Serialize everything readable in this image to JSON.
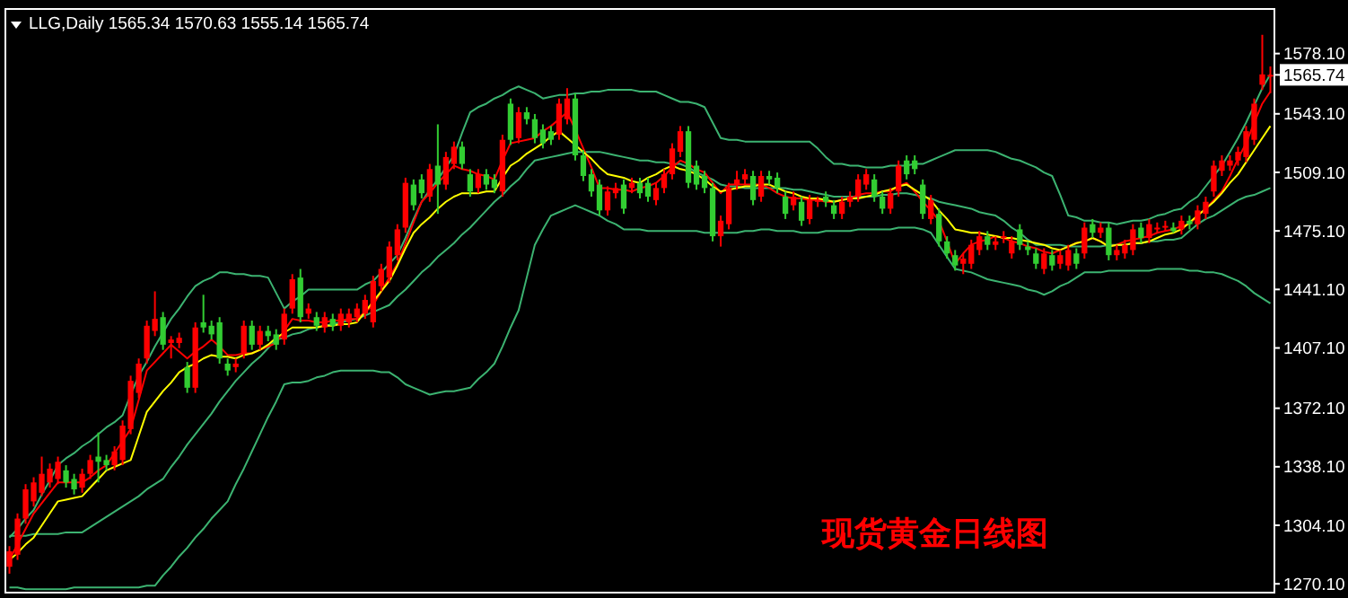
{
  "chart_data": {
    "type": "candlestick",
    "title": "LLG,Daily  1565.34 1570.63 1555.14 1565.74",
    "categories": [
      null,
      null,
      null,
      null,
      null,
      null,
      null,
      null,
      null,
      null,
      null,
      null,
      null,
      null,
      null,
      null,
      null,
      null,
      null,
      null,
      null,
      null,
      null,
      null,
      null,
      null,
      null,
      null,
      null,
      null,
      null,
      null,
      null,
      null,
      null,
      null,
      null,
      null,
      null,
      null,
      null,
      null,
      null,
      null,
      null,
      null,
      null,
      null,
      null,
      null,
      null,
      null,
      null,
      null,
      null,
      null,
      null,
      null,
      null,
      null,
      null,
      null,
      null,
      null,
      null,
      null,
      null,
      null,
      null,
      null,
      null,
      null,
      null,
      null,
      null,
      null,
      null,
      null,
      null,
      null,
      null,
      null,
      null,
      null,
      null,
      null,
      null,
      null,
      null,
      null,
      null,
      null,
      null,
      null,
      null,
      null,
      null,
      null,
      null,
      null,
      null,
      null,
      null,
      null,
      null,
      null,
      null,
      null,
      null,
      null,
      null,
      null,
      null,
      null,
      null,
      null,
      null,
      null,
      null,
      null,
      null,
      null,
      null,
      null,
      null,
      null,
      null,
      null,
      null,
      null,
      null,
      null,
      null,
      null,
      null,
      null,
      null,
      null,
      null,
      null,
      null,
      null,
      null,
      null,
      null,
      null,
      null,
      null,
      null,
      null,
      null,
      null,
      null,
      null,
      null,
      null,
      null
    ],
    "ohlc": [
      [
        1280,
        1292,
        1276,
        1289
      ],
      [
        1287,
        1311,
        1284,
        1308
      ],
      [
        1308,
        1328,
        1305,
        1325
      ],
      [
        1318,
        1332,
        1315,
        1329
      ],
      [
        1323,
        1344,
        1321,
        1334
      ],
      [
        1329,
        1340,
        1326,
        1337
      ],
      [
        1331,
        1344,
        1328,
        1341
      ],
      [
        1336,
        1339,
        1326,
        1329
      ],
      [
        1331,
        1334,
        1322,
        1325
      ],
      [
        1326,
        1337,
        1323,
        1334
      ],
      [
        1334,
        1345,
        1331,
        1342
      ],
      [
        1344,
        1358,
        1329,
        1341
      ],
      [
        1342,
        1345,
        1336,
        1339
      ],
      [
        1339,
        1350,
        1336,
        1347
      ],
      [
        1342,
        1365,
        1339,
        1362
      ],
      [
        1360,
        1391,
        1357,
        1388
      ],
      [
        1381,
        1401,
        1378,
        1398
      ],
      [
        1401,
        1423,
        1398,
        1420
      ],
      [
        1417,
        1440,
        1414,
        1424
      ],
      [
        1425,
        1428,
        1406,
        1409
      ],
      [
        1410,
        1414,
        1401,
        1412
      ],
      [
        1410,
        1416,
        1407,
        1413
      ],
      [
        1396,
        1399,
        1381,
        1384
      ],
      [
        1384,
        1422,
        1381,
        1419
      ],
      [
        1422,
        1438,
        1416,
        1419
      ],
      [
        1420,
        1423,
        1412,
        1415
      ],
      [
        1422,
        1425,
        1398,
        1401
      ],
      [
        1398,
        1401,
        1391,
        1394
      ],
      [
        1396,
        1401,
        1393,
        1398
      ],
      [
        1404,
        1423,
        1401,
        1420
      ],
      [
        1420,
        1423,
        1406,
        1409
      ],
      [
        1409,
        1420,
        1406,
        1417
      ],
      [
        1417,
        1420,
        1411,
        1414
      ],
      [
        1415,
        1418,
        1406,
        1409
      ],
      [
        1412,
        1430,
        1409,
        1427
      ],
      [
        1430,
        1450,
        1427,
        1447
      ],
      [
        1448,
        1453,
        1422,
        1425
      ],
      [
        1427,
        1433,
        1424,
        1430
      ],
      [
        1425,
        1428,
        1417,
        1420
      ],
      [
        1419,
        1428,
        1416,
        1425
      ],
      [
        1424,
        1427,
        1417,
        1420
      ],
      [
        1420,
        1430,
        1417,
        1427
      ],
      [
        1422,
        1430,
        1419,
        1427
      ],
      [
        1425,
        1433,
        1422,
        1430
      ],
      [
        1427,
        1438,
        1424,
        1435
      ],
      [
        1422,
        1449,
        1419,
        1446
      ],
      [
        1443,
        1456,
        1440,
        1453
      ],
      [
        1448,
        1469,
        1445,
        1466
      ],
      [
        1461,
        1479,
        1458,
        1476
      ],
      [
        1477,
        1506,
        1474,
        1503
      ],
      [
        1502,
        1505,
        1487,
        1490
      ],
      [
        1505,
        1508,
        1494,
        1497
      ],
      [
        1495,
        1514,
        1492,
        1511
      ],
      [
        1513,
        1537,
        1485,
        1502
      ],
      [
        1502,
        1521,
        1499,
        1518
      ],
      [
        1514,
        1527,
        1511,
        1524
      ],
      [
        1524,
        1527,
        1511,
        1514
      ],
      [
        1508,
        1511,
        1495,
        1498
      ],
      [
        1500,
        1511,
        1497,
        1508
      ],
      [
        1508,
        1511,
        1499,
        1502
      ],
      [
        1505,
        1508,
        1497,
        1500
      ],
      [
        1498,
        1531,
        1495,
        1528
      ],
      [
        1549,
        1552,
        1525,
        1528
      ],
      [
        1529,
        1547,
        1526,
        1544
      ],
      [
        1544,
        1547,
        1537,
        1540
      ],
      [
        1540,
        1543,
        1526,
        1529
      ],
      [
        1534,
        1537,
        1523,
        1526
      ],
      [
        1533,
        1536,
        1525,
        1528
      ],
      [
        1531,
        1552,
        1528,
        1549
      ],
      [
        1540,
        1558,
        1537,
        1552
      ],
      [
        1552,
        1555,
        1516,
        1519
      ],
      [
        1519,
        1522,
        1504,
        1507
      ],
      [
        1508,
        1511,
        1495,
        1498
      ],
      [
        1502,
        1505,
        1484,
        1487
      ],
      [
        1487,
        1501,
        1484,
        1498
      ],
      [
        1497,
        1503,
        1494,
        1500
      ],
      [
        1502,
        1505,
        1485,
        1488
      ],
      [
        1500,
        1506,
        1497,
        1503
      ],
      [
        1503,
        1506,
        1494,
        1497
      ],
      [
        1503,
        1506,
        1492,
        1495
      ],
      [
        1493,
        1503,
        1490,
        1500
      ],
      [
        1500,
        1511,
        1497,
        1508
      ],
      [
        1508,
        1526,
        1505,
        1523
      ],
      [
        1521,
        1536,
        1518,
        1533
      ],
      [
        1533,
        1536,
        1500,
        1503
      ],
      [
        1513,
        1516,
        1499,
        1502
      ],
      [
        1507,
        1510,
        1497,
        1500
      ],
      [
        1500,
        1503,
        1469,
        1472
      ],
      [
        1472,
        1484,
        1466,
        1481
      ],
      [
        1479,
        1503,
        1476,
        1500
      ],
      [
        1502,
        1510,
        1499,
        1505
      ],
      [
        1505,
        1511,
        1502,
        1508
      ],
      [
        1507,
        1510,
        1490,
        1493
      ],
      [
        1495,
        1510,
        1492,
        1507
      ],
      [
        1507,
        1510,
        1502,
        1505
      ],
      [
        1506,
        1509,
        1497,
        1500
      ],
      [
        1495,
        1498,
        1482,
        1485
      ],
      [
        1490,
        1498,
        1487,
        1495
      ],
      [
        1492,
        1495,
        1478,
        1481
      ],
      [
        1482,
        1496,
        1479,
        1493
      ],
      [
        1492,
        1495,
        1489,
        1493
      ],
      [
        1495,
        1498,
        1489,
        1492
      ],
      [
        1490,
        1493,
        1482,
        1485
      ],
      [
        1485,
        1495,
        1482,
        1492
      ],
      [
        1492,
        1498,
        1489,
        1495
      ],
      [
        1495,
        1508,
        1492,
        1505
      ],
      [
        1502,
        1511,
        1499,
        1508
      ],
      [
        1505,
        1508,
        1492,
        1495
      ],
      [
        1495,
        1498,
        1485,
        1488
      ],
      [
        1488,
        1500,
        1485,
        1497
      ],
      [
        1498,
        1516,
        1495,
        1513
      ],
      [
        1516,
        1519,
        1505,
        1508
      ],
      [
        1516,
        1519,
        1508,
        1511
      ],
      [
        1502,
        1505,
        1482,
        1485
      ],
      [
        1482,
        1496,
        1479,
        1493
      ],
      [
        1485,
        1488,
        1466,
        1469
      ],
      [
        1469,
        1472,
        1459,
        1462
      ],
      [
        1461,
        1464,
        1452,
        1455
      ],
      [
        1456,
        1462,
        1450,
        1459
      ],
      [
        1456,
        1470,
        1453,
        1467
      ],
      [
        1464,
        1475,
        1461,
        1472
      ],
      [
        1472,
        1475,
        1464,
        1467
      ],
      [
        1467,
        1472,
        1464,
        1469
      ],
      [
        1471,
        1475,
        1468,
        1472
      ],
      [
        1462,
        1472,
        1459,
        1469
      ],
      [
        1476,
        1479,
        1464,
        1467
      ],
      [
        1466,
        1469,
        1461,
        1464
      ],
      [
        1462,
        1465,
        1453,
        1456
      ],
      [
        1453,
        1465,
        1450,
        1462
      ],
      [
        1461,
        1464,
        1452,
        1455
      ],
      [
        1456,
        1464,
        1453,
        1461
      ],
      [
        1455,
        1467,
        1452,
        1464
      ],
      [
        1462,
        1465,
        1453,
        1456
      ],
      [
        1462,
        1480,
        1459,
        1477
      ],
      [
        1479,
        1482,
        1471,
        1474
      ],
      [
        1474,
        1480,
        1471,
        1477
      ],
      [
        1477,
        1480,
        1458,
        1461
      ],
      [
        1461,
        1467,
        1458,
        1464
      ],
      [
        1462,
        1470,
        1459,
        1467
      ],
      [
        1464,
        1479,
        1461,
        1476
      ],
      [
        1477,
        1480,
        1468,
        1471
      ],
      [
        1471,
        1482,
        1468,
        1479
      ],
      [
        1476,
        1480,
        1474,
        1477
      ],
      [
        1477,
        1481,
        1475,
        1478
      ],
      [
        1477,
        1480,
        1474,
        1475
      ],
      [
        1476,
        1484,
        1473,
        1481
      ],
      [
        1481,
        1484,
        1476,
        1479
      ],
      [
        1479,
        1490,
        1476,
        1487
      ],
      [
        1485,
        1495,
        1482,
        1492
      ],
      [
        1498,
        1516,
        1495,
        1513
      ],
      [
        1510,
        1519,
        1507,
        1516
      ],
      [
        1513,
        1519,
        1510,
        1516
      ],
      [
        1516,
        1524,
        1513,
        1521
      ],
      [
        1518,
        1536,
        1515,
        1533
      ],
      [
        1528,
        1552,
        1525,
        1549
      ],
      [
        1560,
        1589,
        1557,
        1566
      ],
      [
        1565.34,
        1570.63,
        1555.14,
        1565.74
      ]
    ],
    "colors": [
      "#ff0000",
      "#ff0000",
      "#ff0000",
      "#ff0000",
      "#ff0000",
      "#ff0000",
      "#ff0000",
      "#32cd32",
      "#32cd32",
      "#ff0000",
      "#ff0000",
      "#32cd32",
      "#32cd32",
      "#ff0000",
      "#ff0000",
      "#ff0000",
      "#ff0000",
      "#ff0000",
      "#ff0000",
      "#32cd32",
      "#ff0000",
      "#ff0000",
      "#32cd32",
      "#ff0000",
      "#32cd32",
      "#32cd32",
      "#32cd32",
      "#32cd32",
      "#ff0000",
      "#ff0000",
      "#32cd32",
      "#ff0000",
      "#32cd32",
      "#32cd32",
      "#ff0000",
      "#ff0000",
      "#32cd32",
      "#ff0000",
      "#32cd32",
      "#ff0000",
      "#32cd32",
      "#ff0000",
      "#ff0000",
      "#ff0000",
      "#ff0000",
      "#ff0000",
      "#ff0000",
      "#ff0000",
      "#ff0000",
      "#ff0000",
      "#32cd32",
      "#32cd32",
      "#ff0000",
      "#32cd32",
      "#ff0000",
      "#ff0000",
      "#32cd32",
      "#32cd32",
      "#ff0000",
      "#32cd32",
      "#32cd32",
      "#ff0000",
      "#32cd32",
      "#ff0000",
      "#32cd32",
      "#32cd32",
      "#32cd32",
      "#32cd32",
      "#ff0000",
      "#ff0000",
      "#32cd32",
      "#32cd32",
      "#32cd32",
      "#32cd32",
      "#ff0000",
      "#ff0000",
      "#32cd32",
      "#ff0000",
      "#32cd32",
      "#32cd32",
      "#ff0000",
      "#ff0000",
      "#ff0000",
      "#ff0000",
      "#32cd32",
      "#32cd32",
      "#32cd32",
      "#32cd32",
      "#ff0000",
      "#ff0000",
      "#ff0000",
      "#ff0000",
      "#32cd32",
      "#ff0000",
      "#32cd32",
      "#32cd32",
      "#32cd32",
      "#ff0000",
      "#32cd32",
      "#ff0000",
      "#ff0000",
      "#32cd32",
      "#32cd32",
      "#ff0000",
      "#ff0000",
      "#ff0000",
      "#ff0000",
      "#32cd32",
      "#32cd32",
      "#ff0000",
      "#ff0000",
      "#32cd32",
      "#32cd32",
      "#32cd32",
      "#ff0000",
      "#32cd32",
      "#32cd32",
      "#32cd32",
      "#ff0000",
      "#ff0000",
      "#ff0000",
      "#32cd32",
      "#ff0000",
      "#ff0000",
      "#ff0000",
      "#32cd32",
      "#32cd32",
      "#32cd32",
      "#ff0000",
      "#32cd32",
      "#ff0000",
      "#ff0000",
      "#32cd32",
      "#ff0000",
      "#32cd32",
      "#ff0000",
      "#32cd32",
      "#ff0000",
      "#ff0000",
      "#ff0000",
      "#32cd32",
      "#ff0000",
      "#ff0000",
      "#ff0000",
      "#32cd32",
      "#ff0000",
      "#32cd32",
      "#ff0000",
      "#ff0000",
      "#ff0000",
      "#ff0000",
      "#ff0000",
      "#ff0000",
      "#ff0000",
      "#ff0000",
      "#ff0000",
      "#ff0000"
    ],
    "series": [
      {
        "type": "line",
        "color": "#3cb371",
        "values": [
          1297,
          1302,
          1308,
          1313,
          1322,
          1330,
          1339,
          1343,
          1346,
          1350,
          1353,
          1357,
          1361,
          1364,
          1368,
          1380,
          1391,
          1399,
          1408,
          1416,
          1424,
          1430,
          1437,
          1443,
          1446,
          1448,
          1451,
          1451,
          1450,
          1450,
          1449,
          1449,
          1448,
          1439,
          1430,
          1434,
          1437,
          1441,
          1441,
          1441,
          1441,
          1441,
          1441,
          1441,
          1444,
          1446,
          1451,
          1456,
          1461,
          1471,
          1482,
          1492,
          1499,
          1505,
          1512,
          1519,
          1532,
          1544,
          1547,
          1549,
          1552,
          1554,
          1557,
          1559,
          1557,
          1555,
          1552,
          1553,
          1554,
          1554,
          1555,
          1555,
          1556,
          1556,
          1557,
          1557,
          1557,
          1557,
          1556,
          1556,
          1556,
          1554,
          1552,
          1550,
          1550,
          1549,
          1547,
          1538,
          1529,
          1528,
          1528,
          1527,
          1527,
          1527,
          1527,
          1527,
          1527,
          1527,
          1527,
          1527,
          1523,
          1518,
          1514,
          1514,
          1513,
          1513,
          1512,
          1512,
          1512,
          1513,
          1513,
          1513,
          1514,
          1514,
          1516,
          1518,
          1520,
          1522,
          1522,
          1522,
          1522,
          1522,
          1521,
          1519,
          1517,
          1516,
          1514,
          1512,
          1509,
          1507,
          1496,
          1484,
          1483,
          1481,
          1481,
          1480,
          1480,
          1479,
          1480,
          1481,
          1481,
          1482,
          1484,
          1485,
          1487,
          1488,
          1492,
          1495,
          1501,
          1507,
          1513,
          1521,
          1529,
          1538,
          1548,
          1558,
          1566
        ]
      },
      {
        "type": "line",
        "color": "#3cb371",
        "values": [
          1298,
          1298,
          1298,
          1299,
          1299,
          1299,
          1299,
          1300,
          1300,
          1300,
          1303,
          1306,
          1309,
          1312,
          1315,
          1318,
          1321,
          1325,
          1328,
          1331,
          1338,
          1344,
          1351,
          1357,
          1363,
          1369,
          1376,
          1382,
          1388,
          1393,
          1398,
          1402,
          1407,
          1412,
          1413,
          1415,
          1416,
          1418,
          1419,
          1420,
          1421,
          1422,
          1423,
          1424,
          1426,
          1428,
          1430,
          1432,
          1437,
          1441,
          1446,
          1451,
          1455,
          1460,
          1464,
          1468,
          1473,
          1477,
          1482,
          1487,
          1492,
          1496,
          1501,
          1505,
          1511,
          1516,
          1517,
          1518,
          1519,
          1520,
          1521,
          1521,
          1521,
          1521,
          1520,
          1519,
          1518,
          1517,
          1516,
          1516,
          1515,
          1515,
          1514,
          1514,
          1512,
          1509,
          1507,
          1505,
          1502,
          1501,
          1501,
          1500,
          1500,
          1500,
          1500,
          1500,
          1500,
          1499,
          1499,
          1498,
          1497,
          1496,
          1495,
          1495,
          1495,
          1495,
          1495,
          1495,
          1496,
          1496,
          1497,
          1497,
          1496,
          1495,
          1494,
          1492,
          1491,
          1490,
          1489,
          1488,
          1486,
          1485,
          1484,
          1481,
          1477,
          1474,
          1470,
          1467,
          1467,
          1467,
          1467,
          1466,
          1466,
          1466,
          1466,
          1466,
          1467,
          1467,
          1467,
          1468,
          1468,
          1469,
          1469,
          1470,
          1470,
          1471,
          1475,
          1479,
          1482,
          1484,
          1487,
          1490,
          1493,
          1495,
          1496,
          1498,
          1500
        ]
      },
      {
        "type": "line",
        "color": "#3cb371",
        "values": [
          1268,
          1268,
          1267,
          1267,
          1267,
          1267,
          1267,
          1267,
          1268,
          1268,
          1268,
          1268,
          1268,
          1268,
          1268,
          1268,
          1268,
          1269,
          1269,
          1275,
          1280,
          1286,
          1291,
          1297,
          1302,
          1308,
          1313,
          1318,
          1328,
          1337,
          1347,
          1357,
          1367,
          1376,
          1386,
          1387,
          1387,
          1388,
          1390,
          1391,
          1393,
          1394,
          1394,
          1394,
          1394,
          1394,
          1393,
          1393,
          1390,
          1386,
          1384,
          1382,
          1380,
          1381,
          1382,
          1382,
          1383,
          1384,
          1389,
          1393,
          1398,
          1408,
          1419,
          1429,
          1448,
          1467,
          1476,
          1484,
          1486,
          1488,
          1490,
          1488,
          1486,
          1484,
          1481,
          1479,
          1476,
          1476,
          1476,
          1475,
          1475,
          1475,
          1475,
          1475,
          1475,
          1475,
          1474,
          1474,
          1474,
          1474,
          1474,
          1475,
          1475,
          1476,
          1476,
          1475,
          1475,
          1475,
          1474,
          1474,
          1474,
          1475,
          1475,
          1475,
          1475,
          1476,
          1476,
          1476,
          1476,
          1476,
          1477,
          1477,
          1477,
          1476,
          1474,
          1467,
          1460,
          1453,
          1452,
          1451,
          1449,
          1447,
          1446,
          1445,
          1444,
          1443,
          1441,
          1440,
          1438,
          1440,
          1443,
          1445,
          1448,
          1451,
          1451,
          1451,
          1452,
          1452,
          1452,
          1452,
          1452,
          1452,
          1453,
          1453,
          1453,
          1453,
          1452,
          1452,
          1451,
          1451,
          1450,
          1448,
          1446,
          1443,
          1439,
          1436,
          1433
        ]
      },
      {
        "type": "line",
        "color": "#ff0000",
        "values": [
          1284,
          1293,
          1302,
          1311,
          1317,
          1323,
          1329,
          1329,
          1329,
          1329,
          1332,
          1336,
          1339,
          1346,
          1353,
          1360,
          1377,
          1394,
          1399,
          1404,
          1409,
          1405,
          1401,
          1405,
          1408,
          1412,
          1408,
          1403,
          1403,
          1404,
          1404,
          1406,
          1408,
          1410,
          1417,
          1424,
          1423,
          1423,
          1422,
          1422,
          1423,
          1423,
          1424,
          1424,
          1428,
          1432,
          1440,
          1448,
          1456,
          1468,
          1480,
          1492,
          1497,
          1503,
          1508,
          1513,
          1511,
          1510,
          1508,
          1507,
          1505,
          1516,
          1526,
          1527,
          1528,
          1529,
          1533,
          1536,
          1540,
          1544,
          1534,
          1523,
          1512,
          1500,
          1500,
          1499,
          1499,
          1498,
          1500,
          1501,
          1503,
          1507,
          1512,
          1516,
          1514,
          1511,
          1509,
          1503,
          1497,
          1502,
          1502,
          1502,
          1502,
          1502,
          1500,
          1497,
          1495,
          1494,
          1494,
          1493,
          1493,
          1492,
          1492,
          1493,
          1494,
          1496,
          1497,
          1497,
          1498,
          1498,
          1501,
          1503,
          1498,
          1492,
          1487,
          1481,
          1469,
          1456,
          1462,
          1467,
          1469,
          1470,
          1472,
          1471,
          1469,
          1468,
          1466,
          1465,
          1463,
          1462,
          1464,
          1466,
          1468,
          1469,
          1471,
          1469,
          1466,
          1467,
          1469,
          1470,
          1471,
          1472,
          1474,
          1475,
          1476,
          1478,
          1479,
          1484,
          1488,
          1493,
          1498,
          1507,
          1517,
          1526,
          1538,
          1549,
          1556
        ]
      },
      {
        "type": "line",
        "color": "#ffff00",
        "values": [
          1284,
          1288,
          1293,
          1297,
          1304,
          1311,
          1318,
          1319,
          1320,
          1321,
          1326,
          1331,
          1336,
          1338,
          1340,
          1342,
          1356,
          1370,
          1376,
          1382,
          1387,
          1393,
          1396,
          1398,
          1401,
          1403,
          1402,
          1402,
          1401,
          1403,
          1404,
          1406,
          1409,
          1413,
          1416,
          1419,
          1419,
          1419,
          1419,
          1420,
          1420,
          1421,
          1421,
          1422,
          1428,
          1434,
          1440,
          1446,
          1455,
          1465,
          1474,
          1479,
          1483,
          1488,
          1492,
          1495,
          1497,
          1497,
          1497,
          1498,
          1498,
          1506,
          1513,
          1516,
          1520,
          1523,
          1526,
          1530,
          1533,
          1529,
          1525,
          1521,
          1517,
          1512,
          1508,
          1507,
          1506,
          1504,
          1503,
          1506,
          1508,
          1511,
          1513,
          1511,
          1510,
          1508,
          1505,
          1501,
          1498,
          1499,
          1500,
          1501,
          1501,
          1502,
          1502,
          1500,
          1498,
          1497,
          1495,
          1494,
          1494,
          1493,
          1492,
          1493,
          1494,
          1494,
          1495,
          1496,
          1498,
          1499,
          1501,
          1502,
          1499,
          1496,
          1493,
          1487,
          1482,
          1476,
          1475,
          1474,
          1474,
          1473,
          1472,
          1471,
          1471,
          1470,
          1469,
          1468,
          1467,
          1465,
          1464,
          1466,
          1468,
          1469,
          1471,
          1469,
          1466,
          1467,
          1467,
          1468,
          1468,
          1469,
          1471,
          1473,
          1474,
          1476,
          1480,
          1484,
          1488,
          1492,
          1497,
          1503,
          1508,
          1515,
          1522,
          1529,
          1536
        ]
      }
    ],
    "ylim": [
      1265,
      1604
    ],
    "yticks": [
      {
        "value": 1270.1,
        "label": "1270.10"
      },
      {
        "value": 1304.1,
        "label": "1304.10"
      },
      {
        "value": 1338.1,
        "label": "1338.10"
      },
      {
        "value": 1372.1,
        "label": "1372.10"
      },
      {
        "value": 1407.1,
        "label": "1407.10"
      },
      {
        "value": 1441.1,
        "label": "1441.10"
      },
      {
        "value": 1475.1,
        "label": "1475.10"
      },
      {
        "value": 1509.1,
        "label": "1509.10"
      },
      {
        "value": 1543.1,
        "label": "1543.10"
      },
      {
        "value": 1578.1,
        "label": "1578.10"
      }
    ],
    "tick_labels": "y",
    "annotations": [
      "现货黄金日线图",
      {
        "text": "1565.74",
        "y": 1565.74
      }
    ]
  }
}
